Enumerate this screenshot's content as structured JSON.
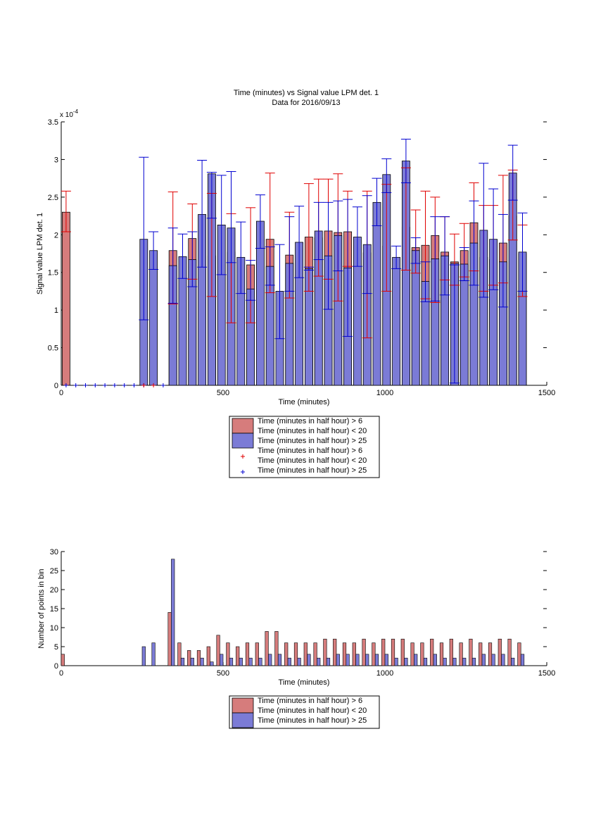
{
  "figure": {
    "title": "Time (minutes) vs Signal value LPM det. 1",
    "subtitle": "Data for 2016/09/13"
  },
  "colors": {
    "series_a_fill": "#d67c7c",
    "series_b_fill": "#7b7bd6",
    "series_a_marker": "#e00000",
    "series_b_marker": "#0000d0",
    "axis": "#000000"
  },
  "chart_data": [
    {
      "type": "bar",
      "xlabel": "Time (minutes)",
      "ylabel": "Signal value LPM det. 1",
      "xlim": [
        0,
        1500
      ],
      "ylim": [
        0,
        0.00035
      ],
      "xticks": [
        "0",
        "500",
        "1000",
        "1500"
      ],
      "yticks": [
        "0",
        "0.5",
        "1",
        "1.5",
        "2",
        "2.5",
        "3",
        "3.5"
      ],
      "yexponent": "x 10",
      "yexponent_power": "-4",
      "legend_position": "below",
      "legend": [
        "Time (minutes in half hour) > 6",
        "Time (minutes in half hour) < 20",
        "Time (minutes in half hour) > 25",
        "Time (minutes in half hour) > 6",
        "Time (minutes in half hour) < 20",
        "Time (minutes in half hour) > 25"
      ],
      "series": [
        {
          "x": [
            15,
            345,
            405,
            465,
            525,
            585,
            645,
            705,
            765,
            795,
            825,
            855,
            885,
            945,
            1005,
            1065,
            1095,
            1125,
            1155,
            1185,
            1215,
            1245,
            1275,
            1305,
            1335,
            1365,
            1395,
            1425
          ],
          "values": [
            0.00023,
            0.000179,
            0.000195,
            0.000172,
            0.000177,
            0.00016,
            0.000194,
            0.000173,
            0.000197,
            0.000196,
            0.000205,
            0.000203,
            0.000204,
            0.000176,
            0.000185,
            0.00021,
            0.000183,
            0.000186,
            0.000199,
            0.000177,
            0.000164,
            0.000179,
            0.000216,
            0.00017,
            0.000167,
            0.000189,
            0.000225,
            0.000175
          ],
          "err_low": [
            0.000204,
            0.000108,
            0.000141,
            0.000118,
            8.3e-05,
            8.3e-05,
            0.000123,
            0.000116,
            0.000125,
            0.000145,
            0.000141,
            0.000112,
            0.000158,
            6.3e-05,
            0.000125,
            0.000153,
            0.000149,
            0.000115,
            0.00011,
            0.00014,
            0.000133,
            0.000144,
            0.000152,
            0.000125,
            0.000133,
            0.000136,
            0.000193,
            0.000118
          ],
          "err_high": [
            0.000258,
            0.000257,
            0.000241,
            0.000255,
            0.000228,
            0.000236,
            0.000282,
            0.00023,
            0.000268,
            0.000274,
            0.000274,
            0.000281,
            0.000258,
            0.000258,
            0.000267,
            0.000289,
            0.000233,
            0.000258,
            0.00025,
            0.000224,
            0.000201,
            0.000215,
            0.000269,
            0.000239,
            0.000239,
            0.000279,
            0.000286,
            0.000213
          ]
        },
        {
          "x": [
            255,
            285,
            345,
            375,
            405,
            435,
            465,
            495,
            525,
            555,
            585,
            615,
            645,
            675,
            705,
            735,
            765,
            795,
            825,
            855,
            885,
            915,
            945,
            975,
            1005,
            1035,
            1065,
            1095,
            1125,
            1155,
            1185,
            1215,
            1245,
            1275,
            1305,
            1335,
            1365,
            1395,
            1425
          ],
          "values": [
            0.000194,
            0.000179,
            0.000159,
            0.000171,
            0.000167,
            0.000227,
            0.000281,
            0.000213,
            0.000209,
            0.00017,
            0.000128,
            0.000218,
            0.000158,
            0.000125,
            0.000162,
            0.00019,
            0.000155,
            0.000205,
            0.000172,
            0.000199,
            0.000156,
            0.000197,
            0.000187,
            0.000243,
            0.00028,
            0.00017,
            0.000298,
            0.000179,
            0.000138,
            0.000168,
            0.000172,
            0.000162,
            0.000161,
            0.000189,
            0.000206,
            0.000194,
            0.000164,
            0.000282,
            0.000177
          ],
          "err_low": [
            8.7e-05,
            0.000154,
            0.000109,
            0.000142,
            0.000131,
            0.000157,
            0.000222,
            0.000147,
            0.000163,
            0.000122,
            0.000113,
            0.000182,
            0.000133,
            6.2e-05,
            0.000125,
            0.000143,
            0.000157,
            0.000167,
            0.000101,
            0.000152,
            6.5e-05,
            0.000158,
            0.000122,
            0.000212,
            0.000256,
            0.000155,
            0.000269,
            0.000162,
            0.000111,
            0.000112,
            0.00012,
            3e-06,
            0.000139,
            0.000133,
            0.000117,
            0.000127,
            0.000104,
            0.000246,
            0.000125
          ],
          "err_high": [
            0.000303,
            0.000204,
            0.000209,
            0.000201,
            0.000204,
            0.000299,
            0.000283,
            0.000279,
            0.000284,
            0.000217,
            0.000166,
            0.000253,
            0.000184,
            0.000187,
            0.000224,
            0.000238,
            0.000153,
            0.000243,
            0.000243,
            0.000245,
            0.000247,
            0.000237,
            0.000252,
            0.000275,
            0.000301,
            0.000185,
            0.000327,
            0.000196,
            0.000164,
            0.000224,
            0.000224,
            0.00016,
            0.000183,
            0.000245,
            0.000295,
            0.000261,
            0.000227,
            0.000319,
            0.000229
          ]
        }
      ],
      "zero_markers_b_x": [
        15,
        45,
        75,
        105,
        135,
        165,
        195,
        225,
        255,
        315
      ],
      "zero_markers_a_x": [
        255,
        285
      ]
    },
    {
      "type": "bar",
      "xlabel": "Time (minutes)",
      "ylabel": "Number of points in bin",
      "xlim": [
        0,
        1500
      ],
      "ylim": [
        0,
        30
      ],
      "xticks": [
        "0",
        "500",
        "1000",
        "1500"
      ],
      "yticks": [
        "0",
        "5",
        "10",
        "15",
        "20",
        "25",
        "30"
      ],
      "legend_position": "below",
      "legend": [
        "Time (minutes in half hour) > 6",
        "Time (minutes in half hour) < 20",
        "Time (minutes in half hour) > 25"
      ],
      "series": [
        {
          "x": [
            5,
            335,
            365,
            395,
            425,
            455,
            485,
            515,
            545,
            575,
            605,
            635,
            665,
            695,
            725,
            755,
            785,
            815,
            845,
            875,
            905,
            935,
            965,
            995,
            1025,
            1055,
            1085,
            1115,
            1145,
            1175,
            1205,
            1235,
            1265,
            1295,
            1325,
            1355,
            1385,
            1415
          ],
          "values": [
            3,
            14,
            6,
            4,
            4,
            5,
            8,
            6,
            5,
            6,
            6,
            9,
            9,
            6,
            6,
            6,
            6,
            7,
            7,
            6,
            6,
            7,
            6,
            7,
            7,
            7,
            6,
            6,
            7,
            6,
            7,
            6,
            7,
            6,
            6,
            7,
            7,
            6
          ]
        },
        {
          "x": [
            255,
            285,
            345,
            375,
            405,
            435,
            465,
            495,
            525,
            555,
            585,
            615,
            645,
            675,
            705,
            735,
            765,
            795,
            825,
            855,
            885,
            915,
            945,
            975,
            1005,
            1035,
            1065,
            1095,
            1125,
            1155,
            1185,
            1215,
            1245,
            1275,
            1305,
            1335,
            1365,
            1395,
            1425
          ],
          "values": [
            5,
            6,
            28,
            2,
            2,
            2,
            1,
            3,
            2,
            2,
            2,
            2,
            3,
            3,
            2,
            2,
            3,
            2,
            2,
            3,
            3,
            3,
            3,
            3,
            3,
            2,
            2,
            3,
            2,
            3,
            2,
            2,
            2,
            2,
            3,
            3,
            3,
            2,
            3
          ]
        }
      ]
    }
  ]
}
